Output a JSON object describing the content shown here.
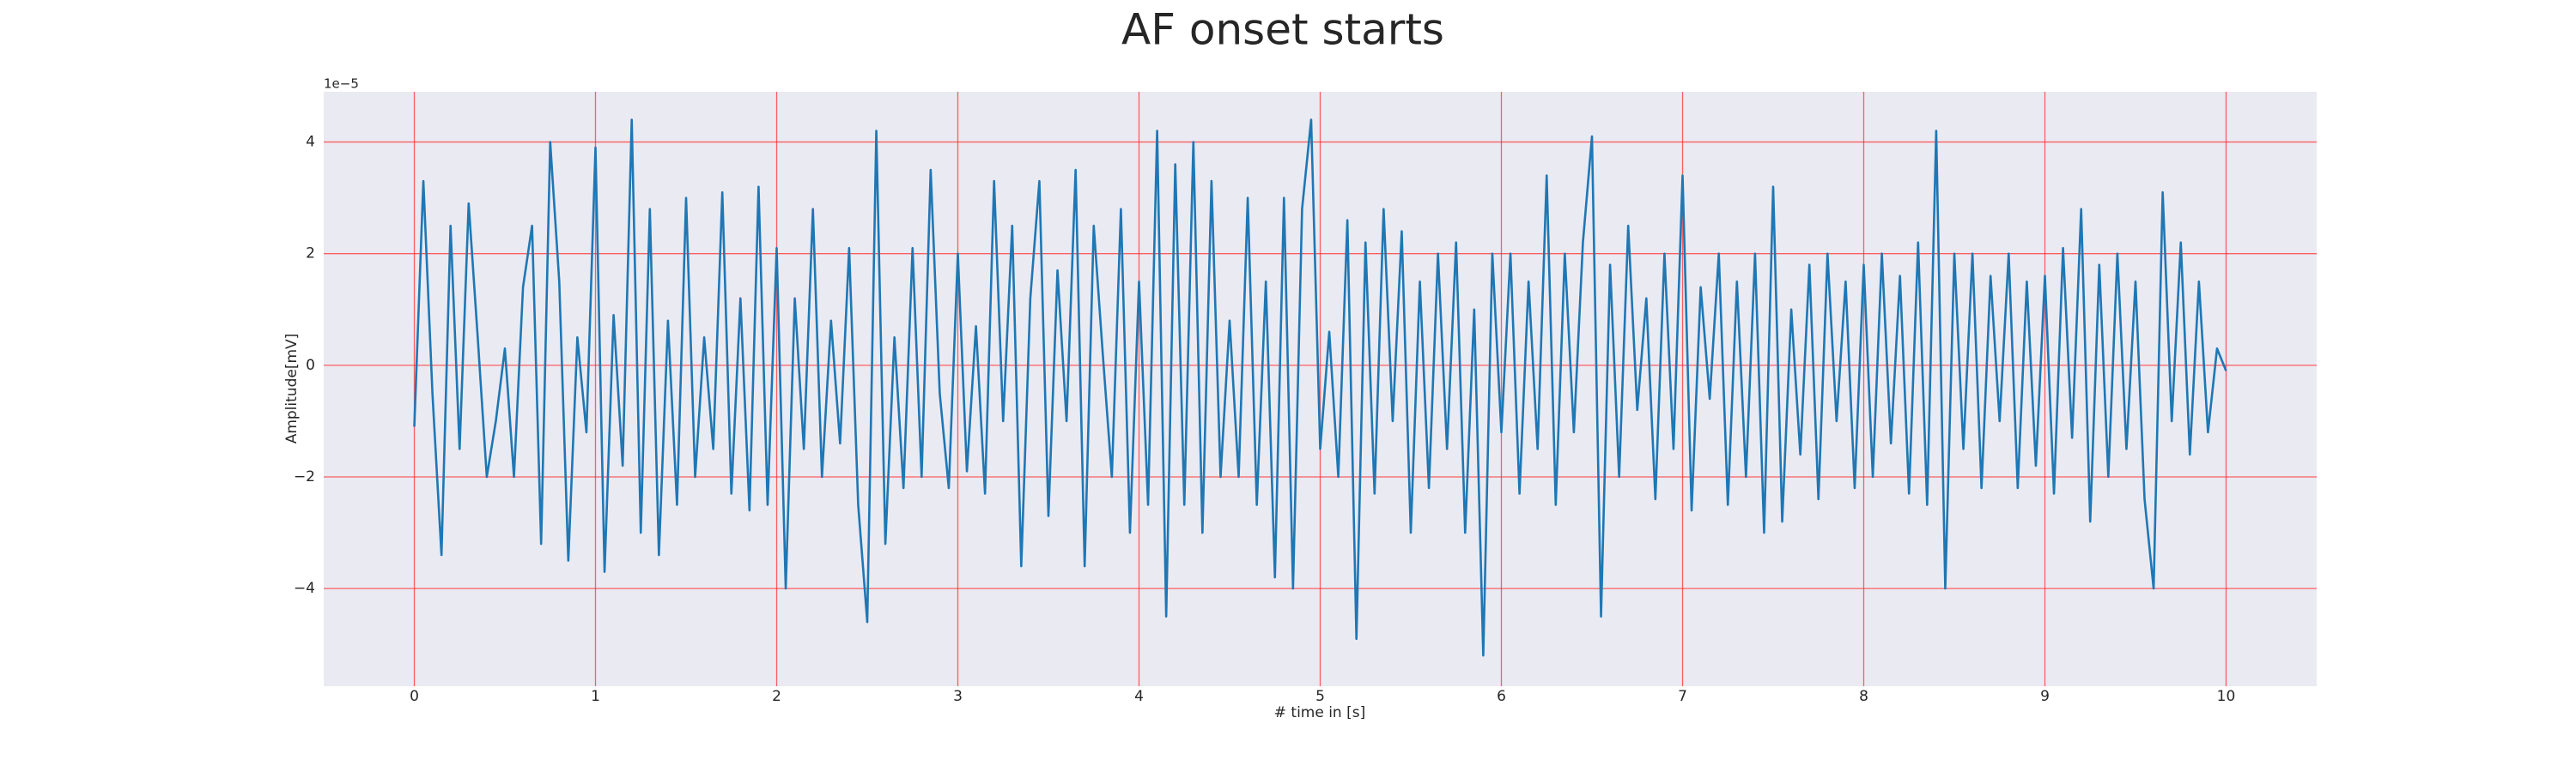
{
  "chart_data": {
    "type": "line",
    "title": "AF onset starts",
    "x_label": "# time in [s]",
    "y_label": "Amplitude[mV]",
    "y_offset_label": "1e−5",
    "color": "#1f77b4",
    "grid": true,
    "grid_color": "#ff3030",
    "xlim": [
      -0.5,
      10.5
    ],
    "ylim": [
      -5.75,
      4.9
    ],
    "xticks": [
      0,
      1,
      2,
      3,
      4,
      5,
      6,
      7,
      8,
      9,
      10
    ],
    "yticks": [
      {
        "value": -4,
        "label": "−4"
      },
      {
        "value": -2,
        "label": "−2"
      },
      0,
      2,
      4
    ],
    "x": [
      0,
      0.05,
      0.1,
      0.15,
      0.2,
      0.25,
      0.3,
      0.35,
      0.4,
      0.45,
      0.5,
      0.55,
      0.6,
      0.65,
      0.7,
      0.75,
      0.8,
      0.85,
      0.9,
      0.95,
      1,
      1.05,
      1.1,
      1.15,
      1.2,
      1.25,
      1.3,
      1.35,
      1.4,
      1.45,
      1.5,
      1.55,
      1.6,
      1.65,
      1.7,
      1.75,
      1.8,
      1.85,
      1.9,
      1.95,
      2,
      2.05,
      2.1,
      2.15,
      2.2,
      2.25,
      2.3,
      2.35,
      2.4,
      2.45,
      2.5,
      2.55,
      2.6,
      2.65,
      2.7,
      2.75,
      2.8,
      2.85,
      2.9,
      2.95,
      3,
      3.05,
      3.1,
      3.15,
      3.2,
      3.25,
      3.3,
      3.35,
      3.4,
      3.45,
      3.5,
      3.55,
      3.6,
      3.65,
      3.7,
      3.75,
      3.8,
      3.85,
      3.9,
      3.95,
      4,
      4.05,
      4.1,
      4.15,
      4.2,
      4.25,
      4.3,
      4.35,
      4.4,
      4.45,
      4.5,
      4.55,
      4.6,
      4.65,
      4.7,
      4.75,
      4.8,
      4.85,
      4.9,
      4.95,
      5,
      5.05,
      5.1,
      5.15,
      5.2,
      5.25,
      5.3,
      5.35,
      5.4,
      5.45,
      5.5,
      5.55,
      5.6,
      5.65,
      5.7,
      5.75,
      5.8,
      5.85,
      5.9,
      5.95,
      6,
      6.05,
      6.1,
      6.15,
      6.2,
      6.25,
      6.3,
      6.35,
      6.4,
      6.45,
      6.5,
      6.55,
      6.6,
      6.65,
      6.7,
      6.75,
      6.8,
      6.85,
      6.9,
      6.95,
      7,
      7.05,
      7.1,
      7.15,
      7.2,
      7.25,
      7.3,
      7.35,
      7.4,
      7.45,
      7.5,
      7.55,
      7.6,
      7.65,
      7.7,
      7.75,
      7.8,
      7.85,
      7.9,
      7.95,
      8,
      8.05,
      8.1,
      8.15,
      8.2,
      8.25,
      8.3,
      8.35,
      8.4,
      8.45,
      8.5,
      8.55,
      8.6,
      8.65,
      8.7,
      8.75,
      8.8,
      8.85,
      8.9,
      8.95,
      9,
      9.05,
      9.1,
      9.15,
      9.2,
      9.25,
      9.3,
      9.35,
      9.4,
      9.45,
      9.5,
      9.55,
      9.6,
      9.65,
      9.7,
      9.75,
      9.8,
      9.85,
      9.9,
      9.95,
      10
    ],
    "values": [
      -1.1,
      3.3,
      -0.5,
      -3.4,
      2.5,
      -1.5,
      2.9,
      0.5,
      -2.0,
      -1.0,
      0.3,
      -2.0,
      1.4,
      2.5,
      -3.2,
      4.0,
      1.5,
      -3.5,
      0.5,
      -1.2,
      3.9,
      -3.7,
      0.9,
      -1.8,
      4.4,
      -3.0,
      2.8,
      -3.4,
      0.8,
      -2.5,
      3.0,
      -2.0,
      0.5,
      -1.5,
      3.1,
      -2.3,
      1.2,
      -2.6,
      3.2,
      -2.5,
      2.1,
      -4.0,
      1.2,
      -1.5,
      2.8,
      -2.0,
      0.8,
      -1.4,
      2.1,
      -2.5,
      -4.6,
      4.2,
      -3.2,
      0.5,
      -2.2,
      2.1,
      -2.0,
      3.5,
      -0.5,
      -2.2,
      2.0,
      -1.9,
      0.7,
      -2.3,
      3.3,
      -1.0,
      2.5,
      -3.6,
      1.2,
      3.3,
      -2.7,
      1.7,
      -1.0,
      3.5,
      -3.6,
      2.5,
      0.2,
      -2.0,
      2.8,
      -3.0,
      1.5,
      -2.5,
      4.2,
      -4.5,
      3.6,
      -2.5,
      4.0,
      -3.0,
      3.3,
      -2.0,
      0.8,
      -2.0,
      3.0,
      -2.5,
      1.5,
      -3.8,
      3.0,
      -4.0,
      2.8,
      4.4,
      -1.5,
      0.6,
      -2.0,
      2.6,
      -4.9,
      2.2,
      -2.3,
      2.8,
      -1.0,
      2.4,
      -3.0,
      1.5,
      -2.2,
      2.0,
      -1.5,
      2.2,
      -3.0,
      1.0,
      -5.2,
      2.0,
      -1.2,
      2.0,
      -2.3,
      1.5,
      -1.5,
      3.4,
      -2.5,
      2.0,
      -1.2,
      2.2,
      4.1,
      -4.5,
      1.8,
      -2.0,
      2.5,
      -0.8,
      1.2,
      -2.4,
      2.0,
      -1.5,
      3.4,
      -2.6,
      1.4,
      -0.6,
      2.0,
      -2.5,
      1.5,
      -2.0,
      2.0,
      -3.0,
      3.2,
      -2.8,
      1.0,
      -1.6,
      1.8,
      -2.4,
      2.0,
      -1.0,
      1.5,
      -2.2,
      1.8,
      -2.0,
      2.0,
      -1.4,
      1.6,
      -2.3,
      2.2,
      -2.5,
      4.2,
      -4.0,
      2.0,
      -1.5,
      2.0,
      -2.2,
      1.6,
      -1.0,
      2.0,
      -2.2,
      1.5,
      -1.8,
      1.6,
      -2.3,
      2.1,
      -1.3,
      2.8,
      -2.8,
      1.8,
      -2.0,
      2.0,
      -1.5,
      1.5,
      -2.4,
      -4.0,
      3.1,
      -1.0,
      2.2,
      -1.6,
      1.5,
      -1.2,
      0.3,
      -0.1
    ]
  }
}
